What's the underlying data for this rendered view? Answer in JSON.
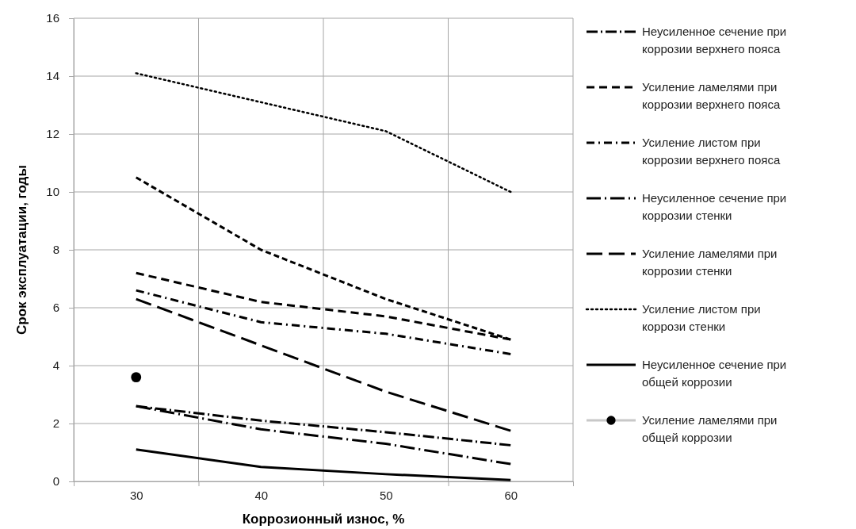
{
  "chart_data": {
    "type": "line",
    "xlabel": "Коррозионный износ, %",
    "ylabel": "Срок эксплуатации, годы",
    "x": [
      30,
      40,
      50,
      60
    ],
    "xlim": [
      25,
      65
    ],
    "xticks": [
      {
        "value": 25,
        "label": null
      },
      30,
      {
        "value": 35,
        "label": null
      },
      40,
      {
        "value": 45,
        "label": null
      },
      50,
      {
        "value": 55,
        "label": null
      },
      60,
      {
        "value": 65,
        "label": null
      }
    ],
    "ylim": [
      0,
      16
    ],
    "yticks": [
      0,
      2,
      4,
      6,
      8,
      10,
      12,
      14,
      16
    ],
    "grid": true,
    "legend": "right",
    "series": [
      {
        "name": "Неусиленное сечение при коррозии верхнего пояса",
        "color": "#000000",
        "line_style": "dashed",
        "values": [
          2.6,
          2.1,
          1.7,
          1.25
        ]
      },
      {
        "name": "Усиление ламелями при коррозии верхнего пояса",
        "color": "#000000",
        "line_style": "dashed",
        "values": [
          7.2,
          6.2,
          5.7,
          4.9
        ]
      },
      {
        "name": "Усиление листом при коррозии верхнего пояса",
        "color": "#000000",
        "line_style": "dashed",
        "values": [
          6.6,
          5.5,
          5.1,
          4.4
        ]
      },
      {
        "name": "Неусиленное сечение при коррозии стенки",
        "color": "#000000",
        "line_style": "dashed",
        "values": [
          2.6,
          1.8,
          1.3,
          0.6
        ]
      },
      {
        "name": "Усиление ламелями при коррозии стенки",
        "color": "#000000",
        "line_style": "dashed",
        "values": [
          6.3,
          4.7,
          3.1,
          1.75
        ]
      },
      {
        "name": "Усиление листом при коррози стенки",
        "color": "#000000",
        "line_style": "dotted",
        "values": [
          14.1,
          13.1,
          12.1,
          10.0
        ]
      },
      {
        "name": "Неусиленное сечение при общей коррозии",
        "color": "#000000",
        "line_style": "solid",
        "values": [
          1.1,
          0.5,
          0.25,
          0.05
        ]
      },
      {
        "name": "Усиление ламелями при общей коррозии",
        "type": "scatter",
        "marker": "circle",
        "color": "#000000",
        "x": [
          30
        ],
        "values": [
          3.6
        ]
      },
      {
        "color": "#000000",
        "line_style": "dashed",
        "values": [
          10.5,
          8.0,
          6.3,
          4.9
        ]
      }
    ]
  }
}
